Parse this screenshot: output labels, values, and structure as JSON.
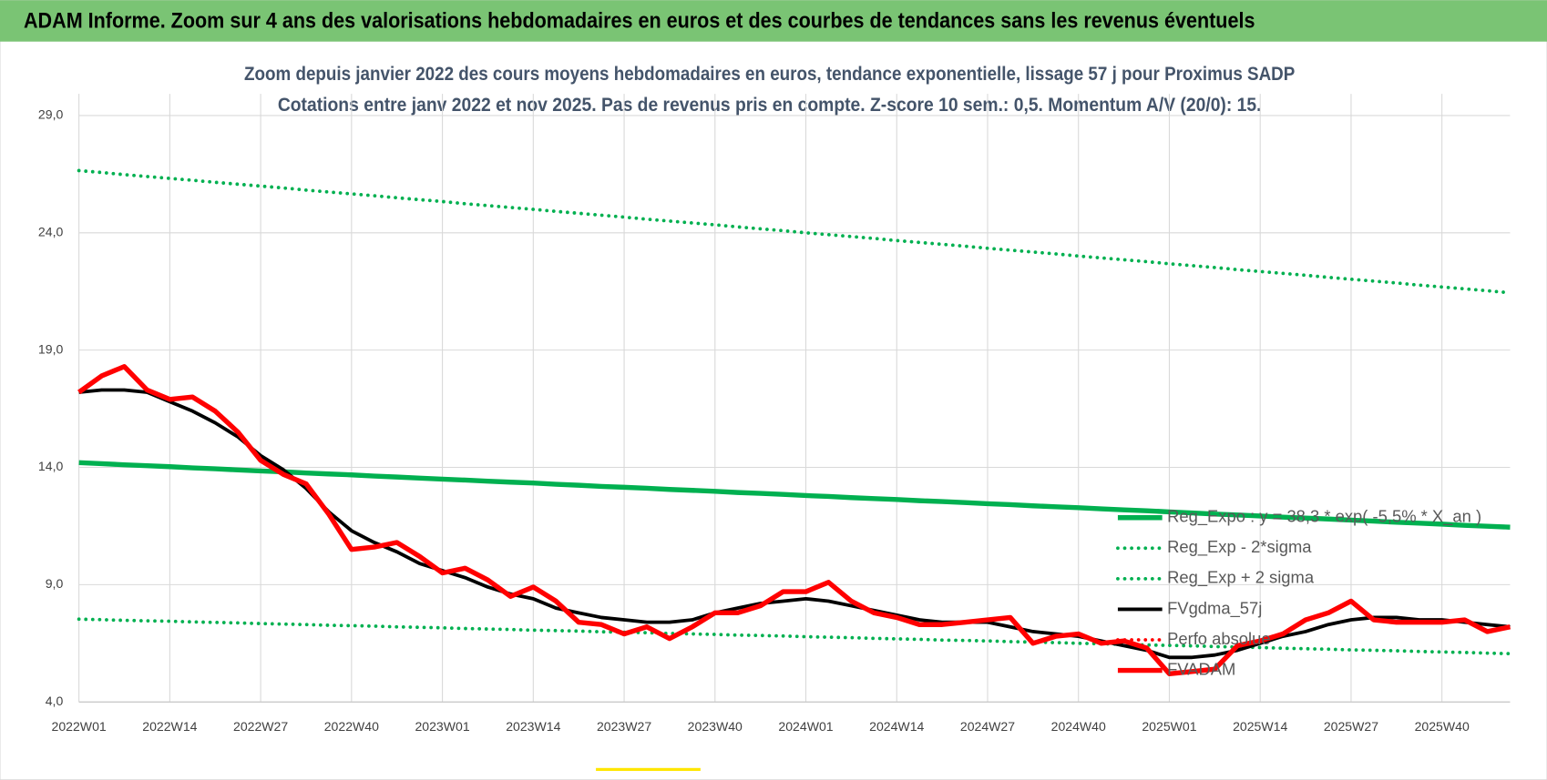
{
  "header": {
    "title": "ADAM Informe. Zoom sur 4 ans des valorisations hebdomadaires en euros et des courbes de tendances sans les revenus éventuels"
  },
  "chart_data": {
    "type": "line",
    "title": "Zoom depuis janvier 2022 des cours moyens hebdomadaires en euros, tendance exponentielle, lissage 57 j pour Proximus SADP",
    "subtitle": "Cotations entre janv 2022 et nov 2025. Pas de revenus pris en compte. Z-score 10 sem.: 0,5. Momentum A/V (20/0): 15.",
    "categories": [
      "2022W01",
      null,
      null,
      null,
      "2022W14",
      null,
      null,
      null,
      "2022W27",
      null,
      null,
      null,
      "2022W40",
      null,
      null,
      null,
      "2023W01",
      null,
      null,
      null,
      "2023W14",
      null,
      null,
      null,
      "2023W27",
      null,
      null,
      null,
      "2023W40",
      null,
      null,
      null,
      "2024W01",
      null,
      null,
      null,
      "2024W14",
      null,
      null,
      null,
      "2024W27",
      null,
      null,
      null,
      "2024W40",
      null,
      null,
      null,
      "2025W01",
      null,
      null,
      null,
      "2025W14",
      null,
      null,
      null,
      "2025W27",
      null,
      null,
      null,
      "2025W40",
      null,
      null,
      null
    ],
    "ylim": [
      4,
      29
    ],
    "yticks": [
      {
        "value": 4,
        "label": "4,0"
      },
      {
        "value": 9,
        "label": "9,0"
      },
      {
        "value": 14,
        "label": "14,0"
      },
      {
        "value": 19,
        "label": "19,0"
      },
      {
        "value": 24,
        "label": "24,0"
      },
      {
        "value": 29,
        "label": "29,0"
      }
    ],
    "grid": true,
    "legend": "right",
    "series": [
      {
        "name": "Reg_Expo : y = 38,3 * exp( -5,5% * X_an )",
        "color": "#00b050",
        "style": "solid",
        "values": [
          14.2,
          14.16,
          14.11,
          14.07,
          14.03,
          13.98,
          13.94,
          13.89,
          13.85,
          13.81,
          13.76,
          13.72,
          13.68,
          13.63,
          13.59,
          13.54,
          13.5,
          13.46,
          13.41,
          13.37,
          13.33,
          13.28,
          13.24,
          13.19,
          13.15,
          13.11,
          13.06,
          13.02,
          12.98,
          12.93,
          12.89,
          12.85,
          12.8,
          12.76,
          12.71,
          12.67,
          12.63,
          12.58,
          12.54,
          12.5,
          12.45,
          12.41,
          12.36,
          12.32,
          12.28,
          12.23,
          12.19,
          12.15,
          12.1,
          12.06,
          12.01,
          11.97,
          11.93,
          11.88,
          11.84,
          11.8,
          11.75,
          11.71,
          11.66,
          11.62,
          11.58,
          11.53,
          11.49,
          11.45
        ]
      },
      {
        "name": "Reg_Exp - 2*sigma",
        "color": "#00b050",
        "style": "dotted",
        "values": [
          7.53,
          7.51,
          7.48,
          7.46,
          7.44,
          7.41,
          7.39,
          7.37,
          7.34,
          7.32,
          7.3,
          7.27,
          7.25,
          7.23,
          7.2,
          7.18,
          7.16,
          7.13,
          7.11,
          7.09,
          7.06,
          7.04,
          7.02,
          6.99,
          6.97,
          6.95,
          6.92,
          6.9,
          6.88,
          6.85,
          6.83,
          6.81,
          6.78,
          6.76,
          6.74,
          6.71,
          6.69,
          6.67,
          6.64,
          6.62,
          6.6,
          6.57,
          6.55,
          6.53,
          6.5,
          6.48,
          6.46,
          6.43,
          6.41,
          6.39,
          6.36,
          6.34,
          6.32,
          6.29,
          6.27,
          6.25,
          6.22,
          6.2,
          6.18,
          6.15,
          6.13,
          6.11,
          6.08,
          6.06
        ]
      },
      {
        "name": "Reg_Exp + 2 sigma",
        "color": "#00b050",
        "style": "dotted",
        "values": [
          26.65,
          26.57,
          26.48,
          26.4,
          26.32,
          26.24,
          26.15,
          26.07,
          25.99,
          25.91,
          25.82,
          25.74,
          25.66,
          25.58,
          25.49,
          25.41,
          25.33,
          25.24,
          25.16,
          25.08,
          25.0,
          24.91,
          24.83,
          24.75,
          24.67,
          24.58,
          24.5,
          24.42,
          24.34,
          24.25,
          24.17,
          24.09,
          24.0,
          23.92,
          23.84,
          23.76,
          23.67,
          23.59,
          23.51,
          23.43,
          23.34,
          23.26,
          23.18,
          23.1,
          23.01,
          22.93,
          22.85,
          22.77,
          22.68,
          22.6,
          22.52,
          22.43,
          22.35,
          22.27,
          22.19,
          22.1,
          22.02,
          21.94,
          21.86,
          21.77,
          21.69,
          21.61,
          21.53,
          21.44
        ]
      },
      {
        "name": "FVgdma_57j",
        "color": "#000000",
        "style": "solid",
        "values": [
          17.2,
          17.3,
          17.3,
          17.2,
          16.8,
          16.4,
          15.9,
          15.3,
          14.5,
          13.9,
          13.1,
          12.1,
          11.3,
          10.8,
          10.4,
          9.9,
          9.6,
          9.3,
          8.9,
          8.6,
          8.4,
          8.0,
          7.8,
          7.6,
          7.5,
          7.4,
          7.4,
          7.5,
          7.8,
          8.0,
          8.2,
          8.3,
          8.4,
          8.3,
          8.1,
          7.9,
          7.7,
          7.5,
          7.4,
          7.4,
          7.4,
          7.2,
          7.0,
          6.9,
          6.8,
          6.6,
          6.4,
          6.2,
          5.9,
          5.9,
          6.0,
          6.2,
          6.5,
          6.8,
          7.0,
          7.3,
          7.5,
          7.6,
          7.6,
          7.5,
          7.5,
          7.4,
          7.3,
          7.2
        ]
      },
      {
        "name": "Perfo absolue",
        "color": "#ff0000",
        "style": "dotted",
        "values": [
          null,
          null,
          null,
          null,
          null,
          null,
          null,
          null,
          null,
          null,
          null,
          null,
          null,
          null,
          null,
          null,
          null,
          null,
          null,
          null,
          null,
          null,
          null,
          null,
          null,
          null,
          null,
          null,
          null,
          null,
          null,
          null,
          null,
          null,
          null,
          null,
          null,
          null,
          null,
          null,
          null,
          null,
          null,
          null,
          null,
          null,
          null,
          null,
          null,
          null,
          null,
          null,
          null,
          null,
          null,
          null,
          null,
          null,
          null,
          null,
          null,
          null,
          null,
          null
        ]
      },
      {
        "name": "FVADAM",
        "color": "#ff0000",
        "style": "solid",
        "values": [
          17.2,
          17.9,
          18.3,
          17.3,
          16.9,
          17.0,
          16.4,
          15.5,
          14.3,
          13.7,
          13.3,
          12.0,
          10.5,
          10.6,
          10.8,
          10.2,
          9.5,
          9.7,
          9.2,
          8.5,
          8.9,
          8.3,
          7.4,
          7.3,
          6.9,
          7.2,
          6.7,
          7.2,
          7.8,
          7.8,
          8.1,
          8.7,
          8.7,
          9.1,
          8.3,
          7.8,
          7.6,
          7.3,
          7.3,
          7.4,
          7.5,
          7.6,
          6.5,
          6.8,
          6.9,
          6.5,
          6.6,
          6.3,
          5.2,
          5.3,
          5.4,
          6.4,
          6.6,
          6.9,
          7.5,
          7.8,
          8.3,
          7.5,
          7.4,
          7.4,
          7.4,
          7.5,
          7.0,
          7.2
        ]
      }
    ]
  }
}
